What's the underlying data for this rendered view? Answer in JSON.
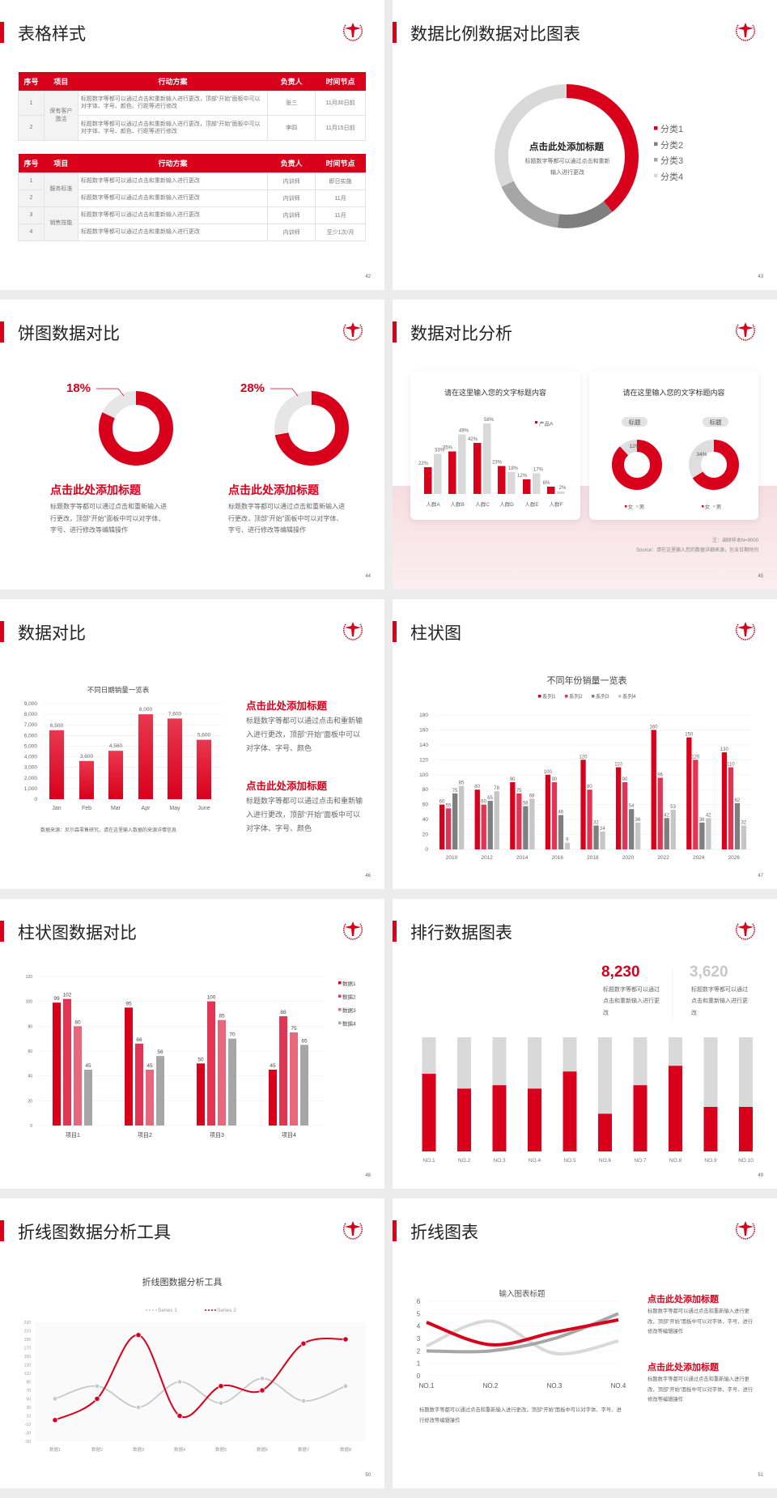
{
  "slides": {
    "s42": {
      "title": "表格样式",
      "page": "42",
      "table1": {
        "headers": [
          "序号",
          "项目",
          "行动方案",
          "负责人",
          "时间节点"
        ],
        "groups": [
          {
            "project": "保有客户激活",
            "rows": [
              {
                "no": "1",
                "plan": "标题数字等都可以通过点击和重新输入进行更改，顶部“开始”面板中可以对字体、字号、颜色、行距等进行修改",
                "owner": "张三",
                "time": "11月30日前"
              },
              {
                "no": "2",
                "plan": "标题数字等都可以通过点击和重新输入进行更改，顶部“开始”面板中可以对字体、字号、颜色、行距等进行修改",
                "owner": "李四",
                "time": "11月15日前"
              }
            ]
          }
        ]
      },
      "table2": {
        "headers": [
          "序号",
          "项目",
          "行动方案",
          "负责人",
          "时间节点"
        ],
        "groups": [
          {
            "project": "服务标准",
            "rows": [
              {
                "no": "1",
                "plan": "标题数字等都可以通过点击和重新输入进行更改",
                "owner": "内训师",
                "time": "即日实施"
              },
              {
                "no": "2",
                "plan": "标题数字等都可以通过点击和重新输入进行更改",
                "owner": "内训师",
                "time": "11月"
              }
            ]
          },
          {
            "project": "销售技能",
            "rows": [
              {
                "no": "3",
                "plan": "标题数字等都可以通过点击和重新输入进行更改",
                "owner": "内训师",
                "time": "11月"
              },
              {
                "no": "4",
                "plan": "标题数字等都可以通过点击和重新输入进行更改",
                "owner": "内训师",
                "time": "至少1次/月"
              }
            ]
          }
        ]
      }
    },
    "s43": {
      "title": "数据比例数据对比图表",
      "page": "43",
      "center_heading": "点击此处添加标题",
      "center_desc": "标题数字等都可以通过点击和重新输入进行更改"
    },
    "s44": {
      "title": "饼图数据对比",
      "page": "44",
      "blocks": [
        {
          "heading": "点击此处添加标题",
          "desc": "标题数字等都可以通过点击和重新输入进行更改，顶部“开始”面板中可以对字体、字号、进行修改等编辑操作"
        },
        {
          "heading": "点击此处添加标题",
          "desc": "标题数字等都可以通过点击和重新输入进行更改，顶部“开始”面板中可以对字体、字号、进行修改等编辑操作"
        }
      ]
    },
    "s45": {
      "title": "数据对比分析",
      "page": "45",
      "card1_title": "请在这里输入您的文字标题内容",
      "card2_title": "请在这里输入您的文字标题内容",
      "note": "注：调研样本N=9000",
      "source": "Source：请在这里输入您的数据详细来源，包含日期时间"
    },
    "s46": {
      "title": "数据对比",
      "page": "46",
      "source": "数据来源：尼尔森零售研究，请在这里输入数据的来源详情信息",
      "blocks": [
        {
          "heading": "点击此处添加标题",
          "desc": "标题数字等都可以通过点击和重新输入进行更改，顶部“开始”面板中可以对字体、字号、颜色"
        },
        {
          "heading": "点击此处添加标题",
          "desc": "标题数字等都可以通过点击和重新输入进行更改，顶部“开始”面板中可以对字体、字号、颜色"
        }
      ]
    },
    "s47": {
      "title": "柱状图",
      "page": "47"
    },
    "s48": {
      "title": "柱状图数据对比",
      "page": "48"
    },
    "s49": {
      "title": "排行数据图表",
      "page": "49",
      "stats": [
        {
          "value": "8,230",
          "desc": "标题数字等都可以通过点击和重新输入进行更改"
        },
        {
          "value": "3,620",
          "desc": "标题数字等都可以通过点击和重新输入进行更改"
        }
      ]
    },
    "s50": {
      "title": "折线图数据分析工具",
      "page": "50"
    },
    "s51": {
      "title": "折线图表",
      "page": "51",
      "bottom_desc": "标题数字等都可以通过点击和重新输入进行更改，顶部“开始”面板中可以对字体、字号、进行修改等编辑操作",
      "blocks": [
        {
          "heading": "点击此处添加标题",
          "desc": "标题数字等都可以通过点击和重新输入进行更改，顶部“开始”面板中可以对字体、字号、进行修改等编辑操作"
        },
        {
          "heading": "点击此处添加标题",
          "desc": "标题数字等都可以通过点击和重新输入进行更改，顶部“开始”面板中可以对字体、字号、进行修改等编辑操作"
        }
      ]
    }
  },
  "colors": {
    "accent": "#d9001b",
    "red2": "#e23553",
    "red3": "#e8677c",
    "gray_dark": "#7f7f7f",
    "gray_mid": "#a6a6a6",
    "gray_light": "#d9d9d9"
  },
  "chart_data": [
    {
      "id": "s43-donut",
      "type": "pie",
      "categories": [
        "分类1",
        "分类2",
        "分类3",
        "分类4"
      ],
      "values": [
        39,
        13,
        16,
        32
      ],
      "legend": "right"
    },
    {
      "id": "s44-donuts",
      "type": "pie",
      "charts": [
        {
          "label": "18%",
          "value": 18
        },
        {
          "label": "28%",
          "value": 28
        }
      ]
    },
    {
      "id": "s45-bar",
      "type": "bar",
      "categories": [
        "人群A",
        "人群B",
        "人群C",
        "人群D",
        "人群E",
        "人群F"
      ],
      "series": [
        {
          "name": "产品A",
          "values": [
            22,
            35,
            42,
            23,
            12,
            6
          ]
        },
        {
          "values": [
            33,
            49,
            58,
            18,
            17,
            2
          ]
        }
      ],
      "unit": "%",
      "legend": "top-right"
    },
    {
      "id": "s45-donuts",
      "type": "pie",
      "legend": [
        "女",
        "男"
      ],
      "charts": [
        {
          "tag": "标题",
          "label": "12%",
          "values": {
            "女": 88,
            "男": 12
          }
        },
        {
          "tag": "标题",
          "label": "34%",
          "values": {
            "女": 66,
            "男": 34
          }
        }
      ]
    },
    {
      "id": "s46-bar",
      "type": "bar",
      "title": "不同日期销量一览表",
      "categories": [
        "Jan",
        "Feb",
        "Mar",
        "Apr",
        "May",
        "June"
      ],
      "values": [
        6500,
        3600,
        4560,
        8000,
        7600,
        5600
      ],
      "ylim": [
        0,
        9000
      ],
      "yticks": [
        0,
        1000,
        2000,
        3000,
        4000,
        5000,
        6000,
        7000,
        8000,
        9000
      ],
      "grid": true
    },
    {
      "id": "s47-bar",
      "type": "bar",
      "title": "不同年份销量一览表",
      "categories": [
        "2010",
        "2012",
        "2014",
        "2016",
        "2018",
        "2020",
        "2022",
        "2024",
        "2026"
      ],
      "series": [
        {
          "name": "系列1",
          "values": [
            60,
            80,
            90,
            100,
            120,
            110,
            160,
            150,
            130
          ]
        },
        {
          "name": "系列2",
          "values": [
            55,
            60,
            75,
            90,
            80,
            90,
            96,
            120,
            110
          ]
        },
        {
          "name": "系列3",
          "values": [
            75,
            65,
            58,
            46,
            32,
            54,
            42,
            36,
            62
          ]
        },
        {
          "name": "系列4",
          "values": [
            85,
            78,
            68,
            9,
            24,
            36,
            53,
            42,
            32
          ]
        }
      ],
      "ylim": [
        0,
        180
      ],
      "yticks": [
        0,
        20,
        40,
        60,
        80,
        100,
        120,
        140,
        160,
        180
      ],
      "legend": "top",
      "grid": true
    },
    {
      "id": "s48-bar",
      "type": "bar",
      "categories": [
        "项目1",
        "项目2",
        "项目3",
        "项目4"
      ],
      "series": [
        {
          "name": "数据1",
          "values": [
            99,
            95,
            50,
            45
          ]
        },
        {
          "name": "数据2",
          "values": [
            102,
            66,
            100,
            88
          ]
        },
        {
          "name": "数据3",
          "values": [
            80,
            45,
            85,
            75
          ]
        },
        {
          "name": "数据4",
          "values": [
            45,
            56,
            70,
            65
          ]
        }
      ],
      "ylim": [
        0,
        120
      ],
      "yticks": [
        0,
        20,
        40,
        60,
        80,
        100,
        120
      ],
      "legend": "right",
      "grid": true
    },
    {
      "id": "s49-bar",
      "type": "bar",
      "stacked_percent": true,
      "categories": [
        "NO.1",
        "NO.2",
        "NO.3",
        "NO.4",
        "NO.5",
        "NO.6",
        "NO.7",
        "NO.8",
        "NO.9",
        "NO.10"
      ],
      "values": [
        68,
        55,
        58,
        55,
        70,
        33,
        58,
        75,
        39,
        39
      ],
      "ylim": [
        0,
        100
      ]
    },
    {
      "id": "s50-line",
      "type": "line",
      "title": "折线图数据分析工具",
      "categories": [
        "数据1",
        "数据2",
        "数据3",
        "数据4",
        "数据5",
        "数据6",
        "数据7",
        "数据8"
      ],
      "series": [
        {
          "name": "Series 1",
          "values": [
            50,
            80,
            30,
            90,
            40,
            98,
            45,
            80
          ]
        },
        {
          "name": "Series 2",
          "values": [
            0,
            50,
            200,
            10,
            80,
            70,
            180,
            190
          ]
        }
      ],
      "ylim": [
        -50,
        230
      ],
      "yticks": [
        -50,
        -30,
        -10,
        10,
        30,
        50,
        70,
        90,
        110,
        130,
        150,
        170,
        190,
        210,
        230
      ],
      "legend": "top"
    },
    {
      "id": "s51-line",
      "type": "line",
      "title": "输入图表标题",
      "categories": [
        "NO.1",
        "NO.2",
        "NO.3",
        "NO.4"
      ],
      "series": [
        {
          "values": [
            4.3,
            2.5,
            3.5,
            4.5
          ]
        },
        {
          "values": [
            2,
            2,
            3,
            5
          ]
        },
        {
          "values": [
            2.4,
            4.4,
            1.8,
            2.8
          ]
        }
      ],
      "ylim": [
        0,
        6
      ],
      "yticks": [
        0,
        1,
        2,
        3,
        4,
        5,
        6
      ],
      "grid": true
    }
  ]
}
